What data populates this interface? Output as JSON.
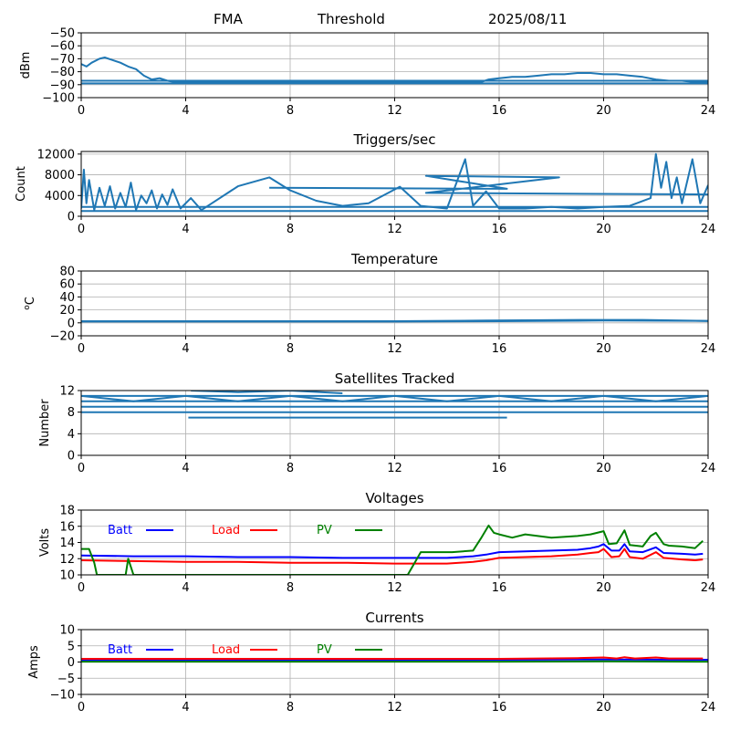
{
  "header": {
    "left": "FMA",
    "center": "Threshold",
    "right": "2025/08/11"
  },
  "colors": {
    "series": "#1f77b4",
    "batt": "#0000ff",
    "load": "#ff0000",
    "pv": "#008000",
    "grid": "#b0b0b0"
  },
  "chart_data": [
    {
      "type": "line",
      "title": "",
      "ylabel": "dBm",
      "xlim": [
        0,
        24
      ],
      "ylim": [
        -100,
        -50
      ],
      "xticks": [
        0,
        4,
        8,
        12,
        16,
        20,
        24
      ],
      "yticks": [
        -100,
        -90,
        -80,
        -70,
        -60,
        -50
      ],
      "grid": true,
      "series": [
        {
          "x": [
            0,
            0.2,
            0.4,
            0.7,
            0.9,
            1.2,
            1.5,
            1.8,
            2.1,
            2.4,
            2.7,
            3.0,
            3.3,
            3.6,
            4,
            6,
            8,
            10,
            12,
            14,
            15.3,
            15.6,
            16,
            16.5,
            17,
            17.5,
            18,
            18.5,
            19,
            19.5,
            20,
            20.5,
            21,
            21.5,
            22,
            22.5,
            23,
            23.5,
            24
          ],
          "y": [
            -74,
            -76,
            -73,
            -70,
            -69,
            -71,
            -73,
            -76,
            -78,
            -83,
            -86,
            -85,
            -87,
            -88,
            -88,
            -88,
            -88,
            -88,
            -88,
            -88,
            -88,
            -86,
            -85,
            -84,
            -84,
            -83,
            -82,
            -82,
            -81,
            -81,
            -82,
            -82,
            -83,
            -84,
            -86,
            -87,
            -87,
            -88,
            -88
          ]
        },
        {
          "x": [
            0,
            4,
            8,
            12,
            16,
            20,
            24
          ],
          "y": [
            -89,
            -89,
            -89,
            -89,
            -89,
            -89,
            -89
          ]
        },
        {
          "x": [
            0,
            4,
            8,
            12,
            16,
            20,
            24
          ],
          "y": [
            -87,
            -87,
            -87,
            -87,
            -87,
            -87,
            -87
          ]
        }
      ]
    },
    {
      "type": "line",
      "title": "Triggers/sec",
      "ylabel": "Count",
      "xlim": [
        0,
        24
      ],
      "ylim": [
        0,
        12500
      ],
      "xticks": [
        0,
        4,
        8,
        12,
        16,
        20,
        24
      ],
      "yticks": [
        0,
        4000,
        8000,
        12000
      ],
      "grid": true,
      "series": [
        {
          "x": [
            0,
            0.1,
            0.2,
            0.3,
            0.5,
            0.7,
            0.9,
            1.1,
            1.3,
            1.5,
            1.7,
            1.9,
            2.1,
            2.3,
            2.5,
            2.7,
            2.9,
            3.1,
            3.3,
            3.5,
            3.8,
            4.2,
            4.6,
            5,
            6,
            7.2,
            8,
            9,
            10,
            11,
            12.2,
            13,
            14,
            14.7,
            15,
            15.5,
            16,
            17,
            18,
            19,
            20,
            21,
            21.8,
            22,
            22.2,
            22.4,
            22.6,
            22.8,
            23,
            23.4,
            23.7,
            24
          ],
          "y": [
            1500,
            9000,
            2500,
            7000,
            1200,
            5500,
            2000,
            5800,
            1500,
            4500,
            1800,
            6500,
            1200,
            4000,
            2500,
            5000,
            1500,
            4200,
            2200,
            5200,
            1500,
            3500,
            1200,
            2500,
            5800,
            7500,
            5000,
            3000,
            2000,
            2500,
            5700,
            2000,
            1500,
            11000,
            2000,
            4800,
            1500,
            1500,
            1800,
            1500,
            1800,
            2000,
            3500,
            12000,
            5500,
            10500,
            3500,
            7500,
            2500,
            11000,
            2500,
            6000
          ]
        },
        {
          "x": [
            7.2,
            16.3,
            13.2,
            18.3,
            13.2,
            24
          ],
          "y": [
            5500,
            5300,
            7800,
            7500,
            4500,
            4200
          ]
        },
        {
          "x": [
            0,
            24
          ],
          "y": [
            1000,
            1000
          ]
        },
        {
          "x": [
            0,
            24
          ],
          "y": [
            1800,
            1800
          ]
        }
      ]
    },
    {
      "type": "line",
      "title": "Temperature",
      "ylabel": "oC",
      "xlim": [
        0,
        24
      ],
      "ylim": [
        -20,
        80
      ],
      "xticks": [
        0,
        4,
        8,
        12,
        16,
        20,
        24
      ],
      "yticks": [
        -20,
        0,
        20,
        40,
        60,
        80
      ],
      "grid": true,
      "series": [
        {
          "x": [
            0,
            4,
            8,
            12,
            16,
            20,
            24
          ],
          "y": [
            2,
            2,
            2,
            2,
            2.5,
            3.5,
            3
          ]
        },
        {
          "x": [
            0,
            4,
            8,
            12,
            15.5,
            19.5,
            21.5,
            24
          ],
          "y": [
            2.5,
            2.5,
            2.5,
            2.5,
            3.5,
            4.5,
            4.5,
            3
          ]
        }
      ]
    },
    {
      "type": "line",
      "title": "Satellites Tracked",
      "ylabel": "Number",
      "xlim": [
        0,
        24
      ],
      "ylim": [
        0,
        12
      ],
      "xticks": [
        0,
        4,
        8,
        12,
        16,
        20,
        24
      ],
      "yticks": [
        0,
        4,
        8,
        12
      ],
      "grid": true,
      "series": [
        {
          "x": [
            0,
            24
          ],
          "y": [
            8,
            8
          ]
        },
        {
          "x": [
            0,
            24
          ],
          "y": [
            9,
            9
          ]
        },
        {
          "x": [
            0,
            24
          ],
          "y": [
            10,
            10
          ]
        },
        {
          "x": [
            0,
            24
          ],
          "y": [
            11,
            11
          ]
        },
        {
          "x": [
            0,
            2,
            4,
            6,
            8,
            10,
            12,
            14,
            16,
            18,
            20,
            22,
            24
          ],
          "y": [
            11,
            10,
            11,
            10,
            11,
            10,
            11,
            10,
            11,
            10,
            11,
            10,
            11
          ]
        },
        {
          "x": [
            4.1,
            16.3
          ],
          "y": [
            7,
            7
          ]
        },
        {
          "x": [
            4.2,
            5.5,
            6,
            8,
            10
          ],
          "y": [
            12,
            11.8,
            11.7,
            12,
            11.5
          ]
        }
      ]
    },
    {
      "type": "line",
      "title": "Voltages",
      "ylabel": "Volts",
      "xlim": [
        0,
        24
      ],
      "ylim": [
        10,
        18
      ],
      "xticks": [
        0,
        4,
        8,
        12,
        16,
        20,
        24
      ],
      "yticks": [
        10,
        12,
        14,
        16,
        18
      ],
      "grid": true,
      "legend": [
        "Batt",
        "Load",
        "PV"
      ],
      "series": [
        {
          "name": "Batt",
          "color": "#0000ff",
          "x": [
            0,
            2,
            4,
            6,
            8,
            10,
            12,
            14,
            15,
            15.5,
            16,
            17,
            18,
            19,
            19.5,
            19.8,
            20,
            20.3,
            20.6,
            20.8,
            21,
            21.5,
            22,
            22.3,
            23,
            23.5,
            23.8
          ],
          "y": [
            12.4,
            12.3,
            12.3,
            12.2,
            12.2,
            12.1,
            12.1,
            12.1,
            12.3,
            12.5,
            12.8,
            12.9,
            13,
            13.1,
            13.3,
            13.5,
            13.8,
            13.0,
            13.0,
            13.8,
            12.9,
            12.8,
            13.4,
            12.7,
            12.6,
            12.5,
            12.6
          ]
        },
        {
          "name": "Load",
          "color": "#ff0000",
          "x": [
            0,
            2,
            4,
            6,
            8,
            10,
            12,
            14,
            15,
            15.5,
            16,
            17,
            18,
            19,
            19.5,
            19.8,
            20,
            20.3,
            20.6,
            20.8,
            21,
            21.5,
            22,
            22.3,
            23,
            23.5,
            23.8
          ],
          "y": [
            11.8,
            11.7,
            11.6,
            11.6,
            11.5,
            11.5,
            11.4,
            11.4,
            11.6,
            11.8,
            12.1,
            12.2,
            12.3,
            12.5,
            12.7,
            12.8,
            13.2,
            12.2,
            12.3,
            13.2,
            12.2,
            12.0,
            12.8,
            12.1,
            11.9,
            11.8,
            11.9
          ]
        },
        {
          "name": "PV",
          "color": "#008000",
          "x": [
            0,
            0.3,
            0.5,
            0.6,
            1.0,
            1.7,
            1.8,
            2.0,
            12.5,
            13.0,
            13.5,
            14.2,
            15.0,
            15.3,
            15.6,
            15.8,
            16.0,
            16.5,
            17.0,
            18.0,
            19.0,
            19.5,
            20.0,
            20.2,
            20.5,
            20.8,
            21.0,
            21.5,
            21.8,
            22.0,
            22.3,
            22.5,
            23.0,
            23.5,
            23.8
          ],
          "y": [
            13.2,
            13.2,
            11.5,
            10,
            10,
            10,
            12,
            10,
            10,
            12.8,
            12.8,
            12.8,
            13.0,
            14.5,
            16.1,
            15.2,
            15.0,
            14.6,
            15.0,
            14.6,
            14.8,
            15.0,
            15.4,
            13.8,
            13.9,
            15.5,
            13.7,
            13.5,
            14.8,
            15.2,
            13.8,
            13.6,
            13.5,
            13.3,
            14.2
          ]
        }
      ]
    },
    {
      "type": "line",
      "title": "Currents",
      "ylabel": "Amps",
      "xlim": [
        0,
        24
      ],
      "ylim": [
        -10,
        10
      ],
      "xticks": [
        0,
        4,
        8,
        12,
        16,
        20,
        24
      ],
      "yticks": [
        -10,
        -5,
        0,
        5,
        10
      ],
      "grid": true,
      "legend": [
        "Batt",
        "Load",
        "PV"
      ],
      "series": [
        {
          "name": "Batt",
          "color": "#0000ff",
          "x": [
            0,
            4,
            8,
            12,
            16,
            20,
            24
          ],
          "y": [
            0.6,
            0.6,
            0.6,
            0.6,
            0.7,
            0.8,
            0.7
          ]
        },
        {
          "name": "Load",
          "color": "#ff0000",
          "x": [
            0,
            4,
            8,
            12,
            16,
            19,
            20,
            20.5,
            20.8,
            21.2,
            22,
            22.5,
            23.8
          ],
          "y": [
            1.0,
            1.0,
            1.0,
            1.0,
            1.0,
            1.2,
            1.4,
            1.1,
            1.5,
            1.1,
            1.4,
            1.1,
            1.1
          ]
        },
        {
          "name": "PV",
          "color": "#008000",
          "x": [
            0,
            4,
            8,
            12,
            16,
            20,
            24
          ],
          "y": [
            0.1,
            0.1,
            0.1,
            0.1,
            0.1,
            0.2,
            0.1
          ]
        }
      ]
    }
  ]
}
